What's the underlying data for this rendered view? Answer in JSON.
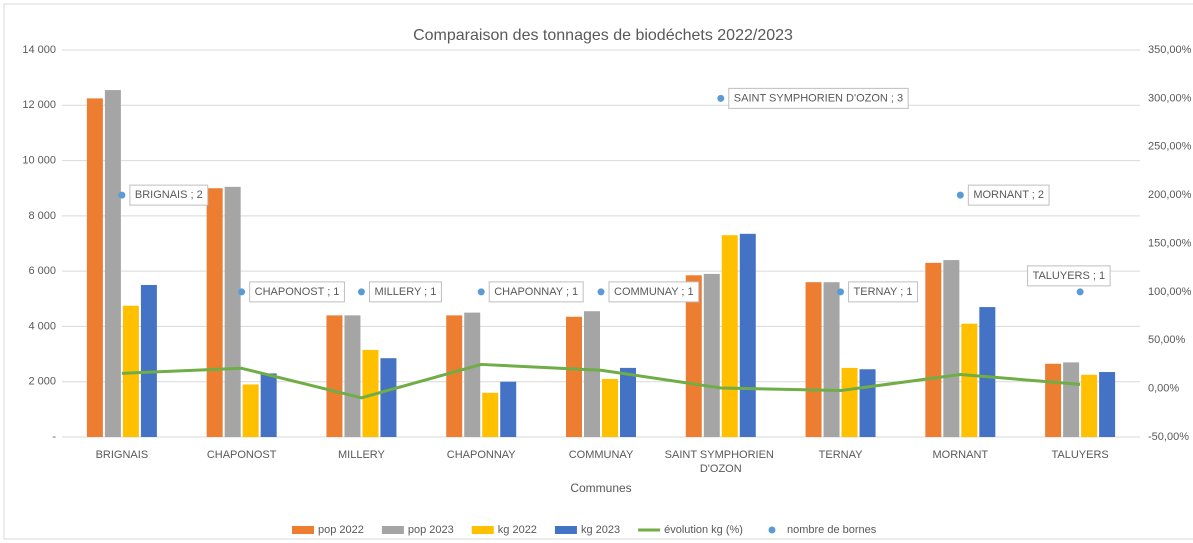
{
  "chart_data": {
    "type": "bar",
    "title": "Comparaison des tonnages de biodéchets 2022/2023",
    "x_label": "Communes",
    "categories": [
      "BRIGNAIS",
      "CHAPONOST",
      "MILLERY",
      "CHAPONNAY",
      "COMMUNAY",
      "SAINT SYMPHORIEN D'OZON",
      "TERNAY",
      "MORNANT",
      "TALUYERS"
    ],
    "series": [
      {
        "name": "pop 2022",
        "type": "bar",
        "color": "#ed7d31",
        "values": [
          12250,
          9000,
          4400,
          4400,
          4350,
          5850,
          5600,
          6300,
          2650
        ]
      },
      {
        "name": "pop 2023",
        "type": "bar",
        "color": "#a5a5a5",
        "values": [
          12550,
          9050,
          4400,
          4500,
          4550,
          5900,
          5600,
          6400,
          2700
        ]
      },
      {
        "name": "kg 2022",
        "type": "bar",
        "color": "#ffc000",
        "values": [
          4750,
          1900,
          3150,
          1600,
          2100,
          7300,
          2500,
          4100,
          2250
        ]
      },
      {
        "name": "kg  2023",
        "type": "bar",
        "color": "#4472c4",
        "values": [
          5500,
          2300,
          2850,
          2000,
          2500,
          7350,
          2450,
          4700,
          2350
        ]
      },
      {
        "name": "évolution kg (%)",
        "type": "line",
        "axis": "y2",
        "color": "#70ad47",
        "values": [
          0.158,
          0.21,
          -0.095,
          0.25,
          0.19,
          0.007,
          -0.02,
          0.146,
          0.044
        ]
      },
      {
        "name": "nombre de bornes",
        "type": "scatter",
        "axis": "y2",
        "color": "#5b9bd5",
        "values": [
          2,
          1,
          1,
          1,
          1,
          3,
          1,
          2,
          1
        ],
        "value_labels": [
          "BRIGNAIS ; 2",
          "CHAPONOST ; 1",
          "MILLERY ; 1",
          "CHAPONNAY ; 1",
          "COMMUNAY ; 1",
          "SAINT SYMPHORIEN D'OZON ; 3",
          "TERNAY ; 1",
          "MORNANT ; 2",
          "TALUYERS ; 1"
        ]
      }
    ],
    "ylim": [
      0,
      14000
    ],
    "yticks": [
      {
        "value": 0,
        "label": "-"
      },
      {
        "value": 2000,
        "label": "2 000"
      },
      {
        "value": 4000,
        "label": "4 000"
      },
      {
        "value": 6000,
        "label": "6 000"
      },
      {
        "value": 8000,
        "label": "8 000"
      },
      {
        "value": 10000,
        "label": "10 000"
      },
      {
        "value": 12000,
        "label": "12 000"
      },
      {
        "value": 14000,
        "label": "14 000"
      }
    ],
    "y2lim": [
      -0.5,
      3.5
    ],
    "y2ticks": [
      {
        "value": -0.5,
        "label": "-50,00%"
      },
      {
        "value": 0,
        "label": "0,00%"
      },
      {
        "value": 0.5,
        "label": "50,00%"
      },
      {
        "value": 1,
        "label": "100,00%"
      },
      {
        "value": 1.5,
        "label": "150,00%"
      },
      {
        "value": 2,
        "label": "200,00%"
      },
      {
        "value": 2.5,
        "label": "250,00%"
      },
      {
        "value": 3,
        "label": "300,00%"
      },
      {
        "value": 3.5,
        "label": "350,00%"
      }
    ],
    "grid": true,
    "legend": "bottom"
  }
}
